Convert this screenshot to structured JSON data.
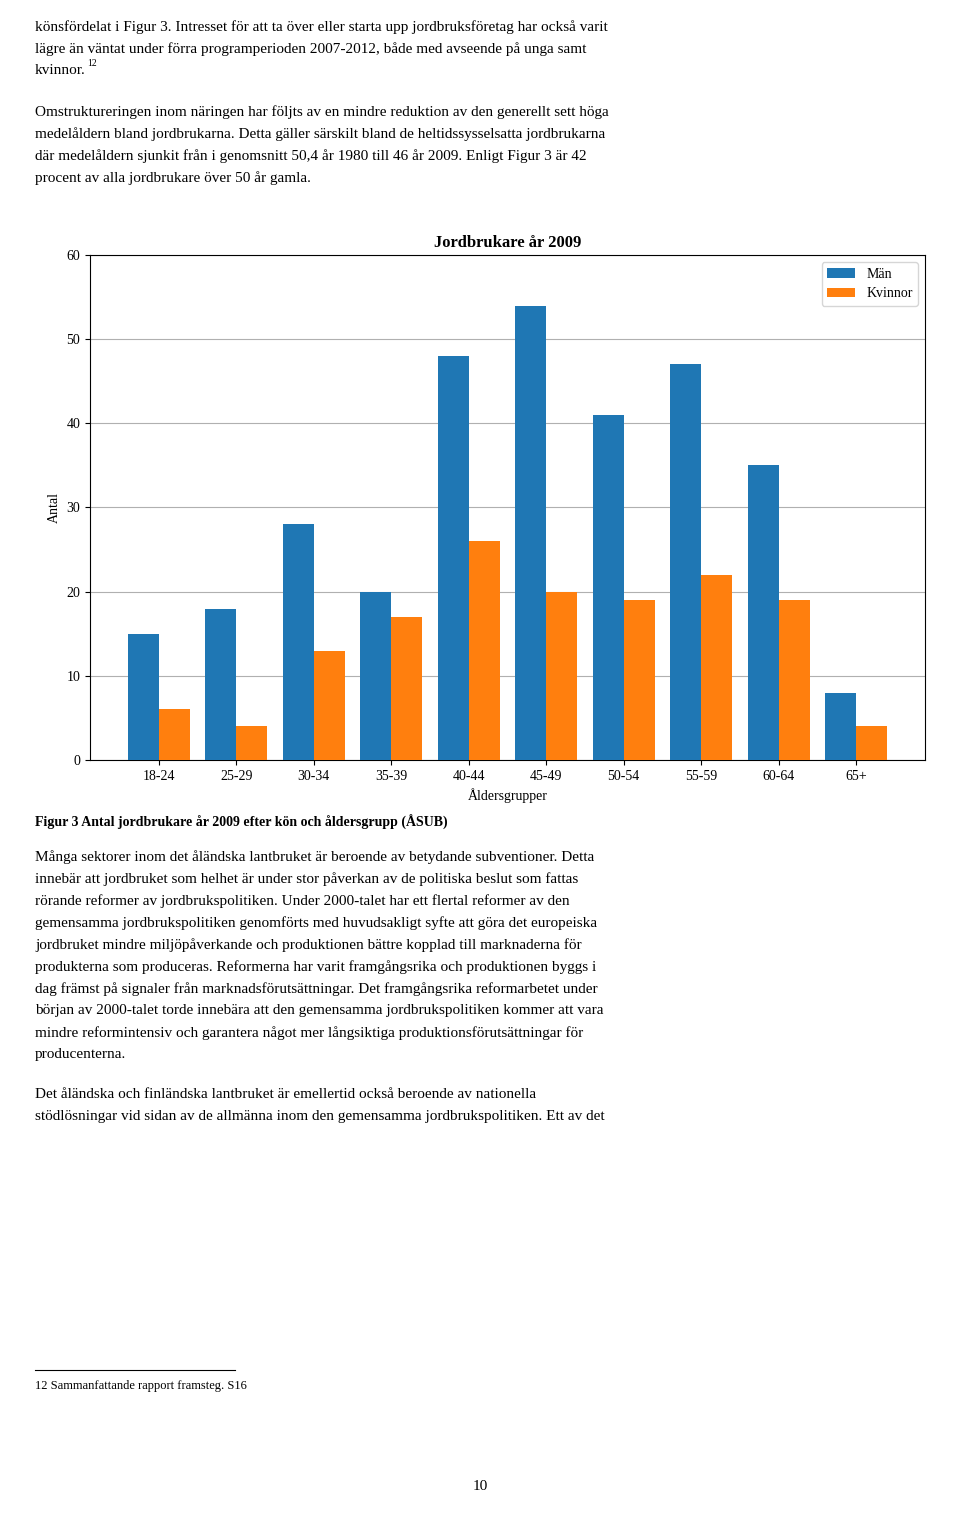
{
  "chart_data": {
    "type": "bar",
    "title": "Jordbrukare år 2009",
    "xlabel": "Åldersgrupper",
    "ylabel": "Antal",
    "categories": [
      "18-24",
      "25-29",
      "30-34",
      "35-39",
      "40-44",
      "45-49",
      "50-54",
      "55-59",
      "60-64",
      "65+"
    ],
    "series": [
      {
        "name": "Män",
        "values": [
          15,
          18,
          28,
          20,
          48,
          54,
          41,
          47,
          35,
          8
        ]
      },
      {
        "name": "Kvinnor",
        "values": [
          6,
          4,
          13,
          17,
          26,
          20,
          19,
          22,
          19,
          4
        ]
      }
    ],
    "ylim": [
      0,
      60
    ],
    "yticks": [
      0,
      10,
      20,
      30,
      40,
      50,
      60
    ],
    "grid": true,
    "legend": "upper right",
    "annotations": [
      "könsfördelat i Figur 3. Intresset för att ta över eller starta upp jordbruksföretag har också varit\nlägre än väntat under förra programperioden 2007-2012, både med avseende på unga samt\nkvinnor.",
      "12",
      "Omstruktureringen inom näringen har följts av en mindre reduktion av den generellt sett höga\nmedelåldern bland jordbrukarna. Detta gäller särskilt bland de heltidssysselsatta jordbrukarna\ndär medelåldern sjunkit från i genomsnitt 50,4 år 1980 till 46 år 2009. Enligt Figur 3 är 42\nprocent av alla jordbrukare över 50 år gamla.",
      "Figur 3 Antal jordbrukare år 2009 efter kön och åldersgrupp (ÅSUB)",
      "Många sektorer inom det åländska lantbruket är beroende av betydande subventioner. Detta\ninnebär att jordbruket som helhet är under stor påverkan av de politiska beslut som fattas\nrörande reformer av jordbrukspolitiken. Under 2000-talet har ett flertal reformer av den\ngemensamma jordbrukspolitiken genomförts med huvudsakligt syfte att göra det europeiska\njordbruket mindre miljöpåverkande och produktionen bättre kopplad till marknaderna för\nprodukterna som produceras. Reformerna har varit framgångsrika och produktionen byggs i\ndag främst på signaler från marknadsförutsättningar. Det framgångsrika reformarbetet under\nbörjan av 2000-talet torde innebära att den gemensamma jordbrukspolitiken kommer att vara\nmindre reformintensiv och garantera något mer långsiktiga produktionsförutsättningar för\nproducenterna.",
      "Det åländska och finländska lantbruket är emellertid också beroende av nationella\nstödlösningar vid sidan av de allmänna inom den gemensamma jordbrukspolitiken. Ett av det",
      "12 Sammanfattande rapport framsteg. S16",
      "10"
    ]
  }
}
